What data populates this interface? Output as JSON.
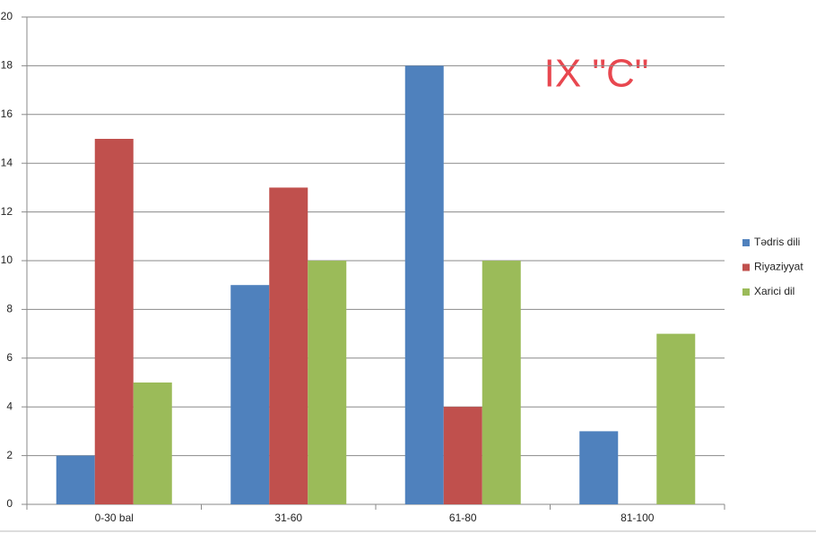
{
  "chart_data": {
    "type": "bar",
    "title": "IX \"C\"",
    "categories": [
      "0-30 bal",
      "31-60",
      "61-80",
      "81-100"
    ],
    "series": [
      {
        "name": "Tədris dili",
        "color": "#4f81bd",
        "values": [
          2,
          9,
          18,
          3
        ]
      },
      {
        "name": "Riyaziyyat",
        "color": "#c0504d",
        "values": [
          15,
          13,
          4,
          0
        ]
      },
      {
        "name": "Xarici dil",
        "color": "#9bbb59",
        "values": [
          5,
          10,
          10,
          7
        ]
      }
    ],
    "ylim": [
      0,
      20
    ],
    "yticks": [
      0,
      2,
      4,
      6,
      8,
      10,
      12,
      14,
      16,
      18,
      20
    ],
    "grid": true,
    "legend": "right",
    "title_color": "#e8474f"
  }
}
